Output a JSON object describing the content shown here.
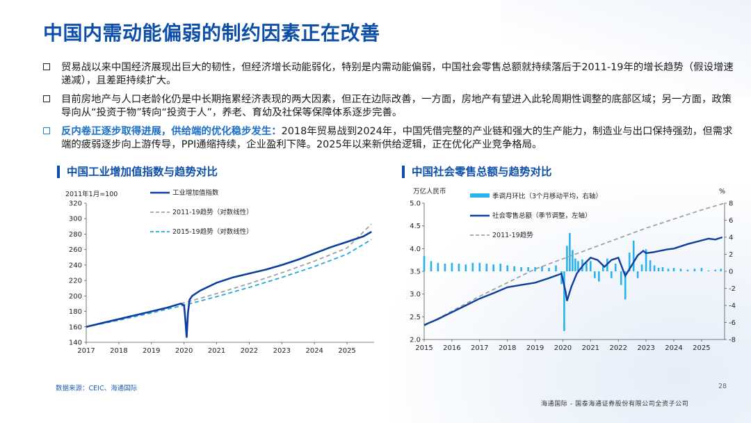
{
  "title": "中国内需动能偏弱的制约因素正在改善",
  "bullets": [
    {
      "lead": "",
      "text": "贸易战以来中国经济展现出巨大的韧性，但经济增长动能弱化，特别是内需动能偏弱，中国社会零售总额就持续落后于2011-19年的增长趋势（假设增速递减），且差距持续扩大。"
    },
    {
      "lead": "",
      "text": "目前房地产与人口老龄化仍是中长期拖累经济表现的两大因素，但正在边际改善，一方面，房地产有望进入此轮周期性调整的底部区域；另一方面，政策导向从“投资于物”转向“投资于人”，养老、育幼及社保等保障体系逐步完善。"
    },
    {
      "lead": "反内卷正逐步取得进展，供给端的优化稳步发生：",
      "text": "2018年贸易战到2024年，中国凭借完整的产业链和强大的生产能力，制造业与出口保持强劲，但需求端的疲弱逐步向上游传导，PPI通缩持续，企业盈利下降。2025年以来新供给逻辑，正在优化产业竞争格局。"
    }
  ],
  "chart_data": [
    {
      "type": "line",
      "title": "中国工业增加值指数与趋势对比",
      "unit_label": "2011年1月=100",
      "x_ticks": [
        "2017",
        "2018",
        "2019",
        "2020",
        "2021",
        "2022",
        "2023",
        "2024",
        "2025"
      ],
      "xlim": [
        2017.0,
        2025.83
      ],
      "ylim": [
        140,
        320
      ],
      "y_ticks": [
        140,
        160,
        180,
        200,
        220,
        240,
        260,
        280,
        300,
        320
      ],
      "grid": false,
      "legend": "top-center",
      "series": [
        {
          "name": "工业增加值指数",
          "color": "#0d3e9e",
          "style": "solid",
          "x": [
            2017.0,
            2017.5,
            2018.0,
            2018.5,
            2019.0,
            2019.5,
            2019.9,
            2020.0,
            2020.04,
            2020.08,
            2020.12,
            2020.17,
            2020.25,
            2020.5,
            2021.0,
            2021.5,
            2022.0,
            2022.5,
            2023.0,
            2023.5,
            2024.0,
            2024.5,
            2025.0,
            2025.5,
            2025.75
          ],
          "y": [
            160,
            165,
            170,
            175,
            180,
            185,
            190,
            188,
            170,
            146,
            178,
            195,
            200,
            207,
            217,
            224,
            229,
            234,
            240,
            247,
            255,
            263,
            270,
            277,
            283
          ]
        },
        {
          "name": "2011-19趋势（对数线性）",
          "color": "#a0a0a0",
          "style": "dash",
          "x": [
            2017.0,
            2018.0,
            2019.0,
            2020.0,
            2021.0,
            2022.0,
            2023.0,
            2024.0,
            2025.0,
            2025.75
          ],
          "y": [
            160,
            169.5,
            180,
            191,
            203,
            216,
            230,
            245,
            262,
            293
          ]
        },
        {
          "name": "2015-19趋势（对数线性）",
          "color": "#22a7dc",
          "style": "dash",
          "x": [
            2017.0,
            2018.0,
            2019.0,
            2020.0,
            2021.0,
            2022.0,
            2023.0,
            2024.0,
            2025.0,
            2025.75
          ],
          "y": [
            160,
            168.5,
            178,
            188,
            199,
            211,
            224,
            238,
            254,
            273
          ]
        }
      ]
    },
    {
      "type": "bar+line",
      "title": "中国社会零售总额与趋势对比",
      "left_unit": "万亿人民币",
      "right_unit": "%",
      "x_ticks": [
        "2015",
        "2016",
        "2017",
        "2018",
        "2019",
        "2020",
        "2021",
        "2022",
        "2023",
        "2024",
        "2025"
      ],
      "xlim": [
        2015.0,
        2025.83
      ],
      "ylim_left": [
        2.0,
        5.0
      ],
      "y_ticks_left": [
        "2.0",
        "2.5",
        "3.0",
        "3.5",
        "4.0",
        "4.5",
        "5.0"
      ],
      "ylim_right": [
        -8,
        8
      ],
      "y_ticks_right": [
        -8,
        -6,
        -4,
        -2,
        0,
        2,
        4,
        6,
        8
      ],
      "grid": false,
      "legend": "top-center",
      "bars": {
        "name": "季调月环比（3个月移动平均，右轴）",
        "color": "#29b2ea",
        "x": [
          2015.0,
          2015.25,
          2015.5,
          2015.75,
          2016.0,
          2016.25,
          2016.5,
          2016.75,
          2017.0,
          2017.25,
          2017.5,
          2017.75,
          2018.0,
          2018.25,
          2018.5,
          2018.75,
          2019.0,
          2019.25,
          2019.5,
          2019.75,
          2019.95,
          2020.05,
          2020.15,
          2020.25,
          2020.35,
          2020.45,
          2020.55,
          2020.7,
          2020.85,
          2021.0,
          2021.15,
          2021.3,
          2021.45,
          2021.6,
          2021.75,
          2021.9,
          2022.1,
          2022.25,
          2022.4,
          2022.55,
          2022.7,
          2022.85,
          2023.0,
          2023.15,
          2023.3,
          2023.45,
          2023.6,
          2023.8,
          2024.0,
          2024.25,
          2024.5,
          2024.75,
          2025.0,
          2025.25,
          2025.5,
          2025.7
        ],
        "y": [
          1.8,
          1.2,
          1.0,
          0.9,
          1.0,
          0.9,
          0.8,
          1.0,
          1.0,
          0.9,
          0.8,
          0.9,
          0.7,
          0.6,
          0.5,
          0.5,
          0.5,
          0.6,
          0.4,
          0.7,
          -1.5,
          -7.0,
          3.0,
          4.5,
          2.5,
          1.5,
          1.2,
          1.4,
          1.0,
          1.2,
          -0.8,
          -1.2,
          0.8,
          1.5,
          -0.8,
          0.9,
          -1.6,
          -3.3,
          2.2,
          3.6,
          -0.8,
          0.8,
          2.6,
          1.3,
          0.7,
          0.4,
          0.5,
          0.3,
          0.4,
          0.3,
          0.2,
          0.3,
          0.4,
          0.1,
          0.2,
          0.3
        ]
      },
      "series": [
        {
          "name": "社会零售总额（季节调整，左轴）",
          "color": "#0d3e9e",
          "style": "solid",
          "x": [
            2015.0,
            2015.5,
            2016.0,
            2016.5,
            2017.0,
            2017.5,
            2018.0,
            2018.5,
            2019.0,
            2019.5,
            2019.95,
            2020.1,
            2020.15,
            2020.3,
            2020.5,
            2020.75,
            2021.0,
            2021.25,
            2021.5,
            2021.75,
            2022.0,
            2022.25,
            2022.45,
            2022.7,
            2022.9,
            2023.0,
            2023.25,
            2023.5,
            2023.75,
            2024.0,
            2024.5,
            2025.0,
            2025.25,
            2025.5,
            2025.75
          ],
          "y": [
            2.32,
            2.45,
            2.6,
            2.75,
            2.9,
            3.02,
            3.15,
            3.2,
            3.25,
            3.35,
            3.45,
            3.05,
            2.85,
            3.15,
            3.45,
            3.65,
            3.8,
            3.75,
            3.6,
            3.75,
            3.8,
            3.4,
            3.6,
            3.85,
            3.95,
            3.9,
            3.92,
            3.95,
            3.98,
            4.0,
            4.1,
            4.18,
            4.22,
            4.2,
            4.25
          ]
        },
        {
          "name": "2011-19趋势",
          "color": "#a0a0a0",
          "style": "dash",
          "x": [
            2015.0,
            2017.0,
            2019.0,
            2021.0,
            2023.0,
            2025.0,
            2025.83
          ],
          "y": [
            2.3,
            2.95,
            3.55,
            4.0,
            4.45,
            4.85,
            5.0
          ]
        }
      ]
    }
  ],
  "source": "数据来源：CEIC、海通国际",
  "page_number": "28",
  "footer": "海通国际 - 国泰海通证券股份有限公司全资子公司"
}
